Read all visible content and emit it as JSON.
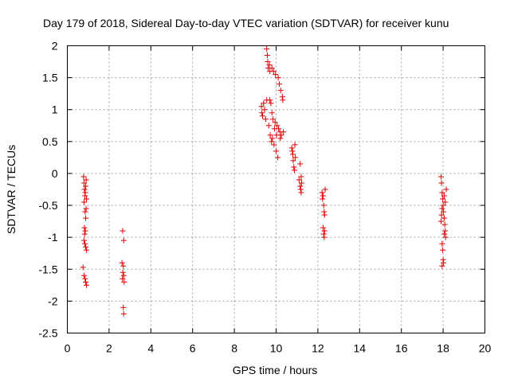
{
  "chart_data": {
    "type": "scatter",
    "title": "Day 179 of 2018, Sidereal Day-to-day VTEC variation (SDTVAR) for receiver kunu",
    "xlabel": "GPS time / hours",
    "ylabel": "SDTVAR / TECUs",
    "xlim": [
      0,
      20
    ],
    "ylim": [
      -2.5,
      2
    ],
    "grid": true,
    "marker": "+",
    "color": "#e00000",
    "xticks": [
      "0",
      "2",
      "4",
      "6",
      "8",
      "10",
      "12",
      "14",
      "16",
      "18",
      "20"
    ],
    "yticks": [
      "-2.5",
      "-2",
      "-1.5",
      "-1",
      "-0.5",
      "0",
      "0.5",
      "1",
      "1.5",
      "2"
    ],
    "series": [
      {
        "name": "SDTVAR",
        "points": [
          [
            0.78,
            -0.05
          ],
          [
            0.8,
            -0.15
          ],
          [
            0.82,
            -0.25
          ],
          [
            0.84,
            -0.35
          ],
          [
            0.86,
            -0.3
          ],
          [
            0.88,
            -0.2
          ],
          [
            0.9,
            -0.1
          ],
          [
            0.92,
            -0.4
          ],
          [
            0.8,
            -0.45
          ],
          [
            0.85,
            -0.6
          ],
          [
            0.88,
            -0.7
          ],
          [
            0.82,
            -0.85
          ],
          [
            0.86,
            -0.9
          ],
          [
            0.8,
            -1.05
          ],
          [
            0.84,
            -1.1
          ],
          [
            0.88,
            -1.15
          ],
          [
            0.92,
            -1.2
          ],
          [
            0.75,
            -1.47
          ],
          [
            0.8,
            -1.6
          ],
          [
            0.85,
            -1.65
          ],
          [
            0.88,
            -1.7
          ],
          [
            0.92,
            -1.75
          ],
          [
            0.83,
            -0.95
          ],
          [
            0.9,
            -0.55
          ],
          [
            2.65,
            -0.9
          ],
          [
            2.7,
            -1.05
          ],
          [
            2.62,
            -1.4
          ],
          [
            2.68,
            -1.45
          ],
          [
            2.66,
            -1.55
          ],
          [
            2.7,
            -1.6
          ],
          [
            2.64,
            -1.65
          ],
          [
            2.72,
            -1.7
          ],
          [
            2.68,
            -2.1
          ],
          [
            2.7,
            -2.2
          ],
          [
            9.3,
            1.05
          ],
          [
            9.32,
            0.95
          ],
          [
            9.35,
            0.9
          ],
          [
            9.4,
            1.1
          ],
          [
            9.45,
            1.0
          ],
          [
            9.5,
            0.85
          ],
          [
            9.55,
            1.15
          ],
          [
            9.55,
            1.95
          ],
          [
            9.58,
            1.85
          ],
          [
            9.6,
            1.75
          ],
          [
            9.62,
            1.65
          ],
          [
            9.65,
            0.75
          ],
          [
            9.68,
            1.7
          ],
          [
            9.7,
            1.6
          ],
          [
            9.7,
            1.15
          ],
          [
            9.72,
            0.6
          ],
          [
            9.75,
            1.1
          ],
          [
            9.78,
            0.5
          ],
          [
            9.8,
            1.65
          ],
          [
            9.8,
            0.95
          ],
          [
            9.82,
            0.55
          ],
          [
            9.85,
            0.85
          ],
          [
            9.88,
            1.6
          ],
          [
            9.9,
            0.45
          ],
          [
            9.92,
            0.7
          ],
          [
            9.95,
            0.8
          ],
          [
            9.97,
            1.55
          ],
          [
            10.0,
            0.35
          ],
          [
            10.02,
            0.6
          ],
          [
            10.05,
            0.75
          ],
          [
            10.08,
            0.25
          ],
          [
            10.1,
            1.5
          ],
          [
            10.12,
            0.7
          ],
          [
            10.15,
            1.4
          ],
          [
            10.18,
            0.65
          ],
          [
            10.2,
            0.55
          ],
          [
            10.22,
            1.3
          ],
          [
            10.25,
            0.6
          ],
          [
            10.3,
            1.2
          ],
          [
            10.32,
            1.15
          ],
          [
            10.35,
            0.65
          ],
          [
            10.75,
            0.4
          ],
          [
            10.78,
            0.35
          ],
          [
            10.8,
            0.3
          ],
          [
            10.82,
            0.2
          ],
          [
            10.85,
            0.1
          ],
          [
            10.88,
            0.05
          ],
          [
            10.9,
            0.45
          ],
          [
            10.92,
            0.25
          ],
          [
            11.1,
            -0.1
          ],
          [
            11.15,
            -0.2
          ],
          [
            11.18,
            -0.25
          ],
          [
            11.2,
            -0.3
          ],
          [
            11.22,
            -0.15
          ],
          [
            11.15,
            0.15
          ],
          [
            11.2,
            -0.05
          ],
          [
            12.2,
            -0.3
          ],
          [
            12.22,
            -0.4
          ],
          [
            12.25,
            -0.35
          ],
          [
            12.28,
            -0.5
          ],
          [
            12.3,
            -0.6
          ],
          [
            12.32,
            -0.65
          ],
          [
            12.35,
            -0.25
          ],
          [
            12.25,
            -0.85
          ],
          [
            12.28,
            -0.95
          ],
          [
            12.3,
            -1.0
          ],
          [
            12.32,
            -0.9
          ],
          [
            17.9,
            -0.05
          ],
          [
            17.92,
            -0.15
          ],
          [
            17.95,
            -0.3
          ],
          [
            17.98,
            -0.4
          ],
          [
            18.0,
            -0.5
          ],
          [
            18.02,
            -0.6
          ],
          [
            18.05,
            -0.7
          ],
          [
            18.08,
            -0.8
          ],
          [
            18.1,
            -0.9
          ],
          [
            18.12,
            -1.0
          ],
          [
            18.15,
            -0.25
          ],
          [
            18.05,
            -0.35
          ],
          [
            17.95,
            -0.55
          ],
          [
            17.92,
            -0.65
          ],
          [
            17.9,
            -0.75
          ],
          [
            17.95,
            -1.1
          ],
          [
            17.98,
            -1.2
          ],
          [
            18.0,
            -1.35
          ],
          [
            18.02,
            -1.4
          ],
          [
            17.95,
            -1.45
          ],
          [
            18.1,
            -0.45
          ],
          [
            18.05,
            -0.95
          ]
        ]
      }
    ]
  }
}
